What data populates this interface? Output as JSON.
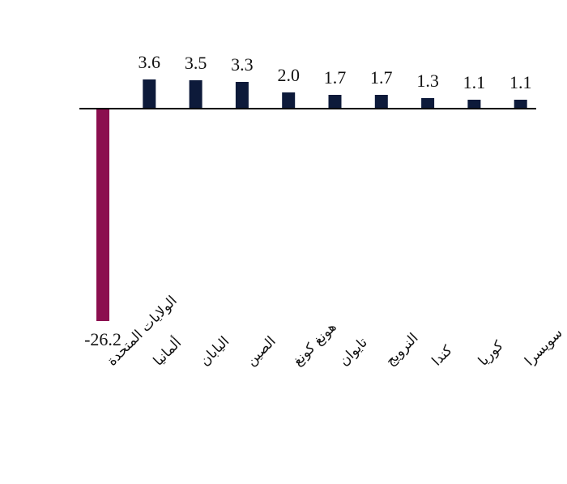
{
  "chart_data": {
    "type": "bar",
    "categories": [
      "الولايات المتحدة",
      "ألمانيا",
      "اليابان",
      "الصين",
      "هونغ كونغ",
      "تايوان",
      "النرويج",
      "كندا",
      "كوريا",
      "سويسرا"
    ],
    "values": [
      -26.2,
      3.6,
      3.5,
      3.3,
      2.0,
      1.7,
      1.7,
      1.3,
      1.1,
      1.1
    ],
    "value_labels": [
      "-26.2",
      "3.6",
      "3.5",
      "3.3",
      "2.0",
      "1.7",
      "1.7",
      "1.3",
      "1.1",
      "1.1"
    ],
    "title": "",
    "xlabel": "",
    "ylabel": "",
    "ylim": [
      -26.2,
      3.6
    ],
    "grid": false,
    "legend": "none",
    "colors": {
      "positive": "#0d1a3a",
      "negative": "#8b0f4f",
      "axis": "#000000"
    }
  }
}
